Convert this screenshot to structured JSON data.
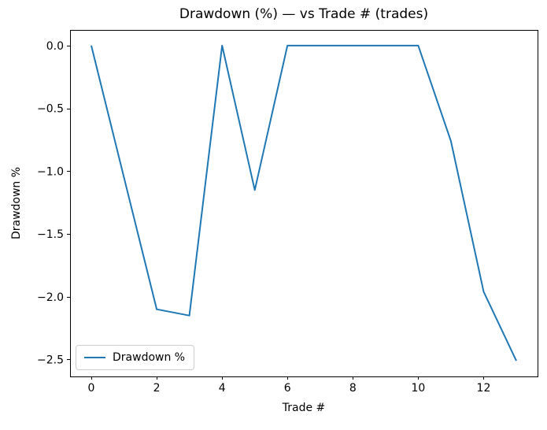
{
  "colors": {
    "line": "#1f77b4",
    "spine": "#000000",
    "text": "#000000",
    "legend_border": "#cccccc",
    "background": "#ffffff"
  },
  "chart_data": {
    "type": "line",
    "title": "Drawdown (%) — vs Trade # (trades)",
    "xlabel": "Trade #",
    "ylabel": "Drawdown %",
    "grid": false,
    "legend": {
      "position": "lower left",
      "entries": [
        "Drawdown %"
      ]
    },
    "xlim": [
      -0.65,
      13.65
    ],
    "ylim": [
      -2.635,
      0.125
    ],
    "xticks": [
      0,
      2,
      4,
      6,
      8,
      10,
      12
    ],
    "xtick_labels": [
      "0",
      "2",
      "4",
      "6",
      "8",
      "10",
      "12"
    ],
    "yticks": [
      0.0,
      -0.5,
      -1.0,
      -1.5,
      -2.0,
      -2.5
    ],
    "ytick_labels": [
      "0.0",
      "−0.5",
      "−1.0",
      "−1.5",
      "−2.0",
      "−2.5"
    ],
    "series": [
      {
        "name": "Drawdown %",
        "color": "#1f77b4",
        "x": [
          0,
          1,
          2,
          3,
          4,
          5,
          6,
          7,
          8,
          9,
          10,
          11,
          12,
          13
        ],
        "y": [
          0.0,
          -1.05,
          -2.1,
          -2.15,
          0.0,
          -1.15,
          0.0,
          0.0,
          0.0,
          0.0,
          0.0,
          -0.76,
          -1.96,
          -2.51
        ]
      }
    ]
  }
}
